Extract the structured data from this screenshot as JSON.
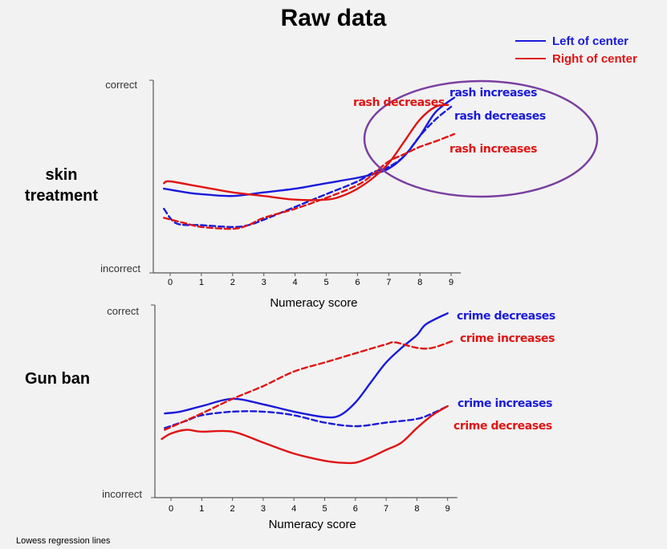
{
  "title": "Raw data",
  "footnote": "Lowess regression lines",
  "colors": {
    "left": "#1a1adb",
    "right": "#e01414",
    "ellipse": "#7a3fa0"
  },
  "legend": [
    {
      "label": "Left of center",
      "color": "#1a1adb"
    },
    {
      "label": "Right of center",
      "color": "#e01414"
    }
  ],
  "row_labels": {
    "top": "skin\ntreatment",
    "bottom": "Gun ban"
  },
  "chart_data": [
    {
      "type": "line",
      "xlabel": "Numeracy score",
      "ylabel_top": "correct",
      "ylabel_bottom": "incorrect",
      "xticks": [
        "0",
        "1",
        "2",
        "3",
        "4",
        "5",
        "6",
        "7",
        "8",
        "9"
      ],
      "xlim": [
        -0.5,
        9.3
      ],
      "ylim": [
        0,
        1
      ],
      "series": [
        {
          "group": "left",
          "style": "solid",
          "x": [
            -0.2,
            0.5,
            1,
            2,
            3,
            4,
            5,
            6,
            6.5,
            7,
            7.5,
            8,
            8.5,
            9.1
          ],
          "y": [
            0.44,
            0.42,
            0.41,
            0.4,
            0.42,
            0.44,
            0.47,
            0.5,
            0.52,
            0.55,
            0.62,
            0.73,
            0.86,
            0.94
          ]
        },
        {
          "group": "left",
          "style": "dashed",
          "x": [
            -0.2,
            0.2,
            1,
            2,
            2.5,
            3,
            4,
            5,
            6,
            6.5,
            7,
            7.5,
            8,
            8.5,
            9
          ],
          "y": [
            0.33,
            0.25,
            0.24,
            0.23,
            0.24,
            0.27,
            0.34,
            0.41,
            0.48,
            0.53,
            0.56,
            0.62,
            0.73,
            0.82,
            0.89
          ]
        },
        {
          "group": "right",
          "style": "solid",
          "x": [
            -0.2,
            0,
            1,
            2,
            3,
            4,
            5,
            5.5,
            6,
            6.5,
            7,
            7.5,
            8,
            8.5,
            8.9
          ],
          "y": [
            0.47,
            0.48,
            0.45,
            0.42,
            0.4,
            0.38,
            0.38,
            0.4,
            0.44,
            0.5,
            0.58,
            0.7,
            0.82,
            0.89,
            0.9
          ]
        },
        {
          "group": "right",
          "style": "dashed",
          "x": [
            -0.2,
            0.5,
            1,
            2,
            2.5,
            3,
            4,
            5,
            6,
            6.5,
            7,
            7.5,
            8,
            8.5,
            9.1
          ],
          "y": [
            0.28,
            0.25,
            0.23,
            0.22,
            0.24,
            0.28,
            0.33,
            0.39,
            0.46,
            0.52,
            0.59,
            0.63,
            0.67,
            0.7,
            0.74
          ]
        }
      ],
      "annotations": [
        {
          "text": "rash decreases",
          "group": "right"
        },
        {
          "text": "rash increases",
          "group": "left"
        },
        {
          "text": "rash decreases",
          "group": "left"
        },
        {
          "text": "rash increases",
          "group": "right"
        }
      ]
    },
    {
      "type": "line",
      "xlabel": "Numeracy score",
      "ylabel_top": "correct",
      "ylabel_bottom": "incorrect",
      "xticks": [
        "0",
        "1",
        "2",
        "3",
        "4",
        "5",
        "6",
        "7",
        "8",
        "9"
      ],
      "xlim": [
        -0.5,
        9.3
      ],
      "ylim": [
        0,
        1
      ],
      "series": [
        {
          "group": "left",
          "style": "solid",
          "x": [
            -0.2,
            0.3,
            1,
            2,
            3,
            4,
            5,
            5.5,
            6,
            6.5,
            7,
            7.5,
            8,
            8.3,
            9
          ],
          "y": [
            0.44,
            0.45,
            0.48,
            0.52,
            0.49,
            0.45,
            0.42,
            0.43,
            0.5,
            0.61,
            0.72,
            0.8,
            0.87,
            0.93,
            0.99
          ]
        },
        {
          "group": "left",
          "style": "dashed",
          "x": [
            -0.2,
            0.5,
            1,
            2,
            3,
            4,
            5,
            6,
            7,
            8,
            8.5,
            9
          ],
          "y": [
            0.36,
            0.4,
            0.43,
            0.45,
            0.45,
            0.43,
            0.39,
            0.37,
            0.39,
            0.41,
            0.44,
            0.48
          ]
        },
        {
          "group": "right",
          "style": "solid",
          "x": [
            -0.3,
            0,
            0.5,
            1,
            2,
            3,
            4,
            5,
            5.5,
            6,
            6.5,
            7,
            7.5,
            8,
            8.5,
            9
          ],
          "y": [
            0.3,
            0.33,
            0.35,
            0.34,
            0.34,
            0.28,
            0.22,
            0.18,
            0.17,
            0.17,
            0.2,
            0.24,
            0.28,
            0.36,
            0.43,
            0.48
          ]
        },
        {
          "group": "right",
          "style": "dashed",
          "x": [
            -0.2,
            1,
            2,
            3,
            4,
            5,
            6,
            7,
            7.3,
            8,
            8.5,
            9.2
          ],
          "y": [
            0.35,
            0.44,
            0.52,
            0.59,
            0.67,
            0.72,
            0.77,
            0.82,
            0.83,
            0.8,
            0.8,
            0.84
          ]
        }
      ],
      "annotations": [
        {
          "text": "crime decreases",
          "group": "left"
        },
        {
          "text": "crime increases",
          "group": "right"
        },
        {
          "text": "crime increases",
          "group": "left"
        },
        {
          "text": "crime decreases",
          "group": "right"
        }
      ]
    }
  ]
}
